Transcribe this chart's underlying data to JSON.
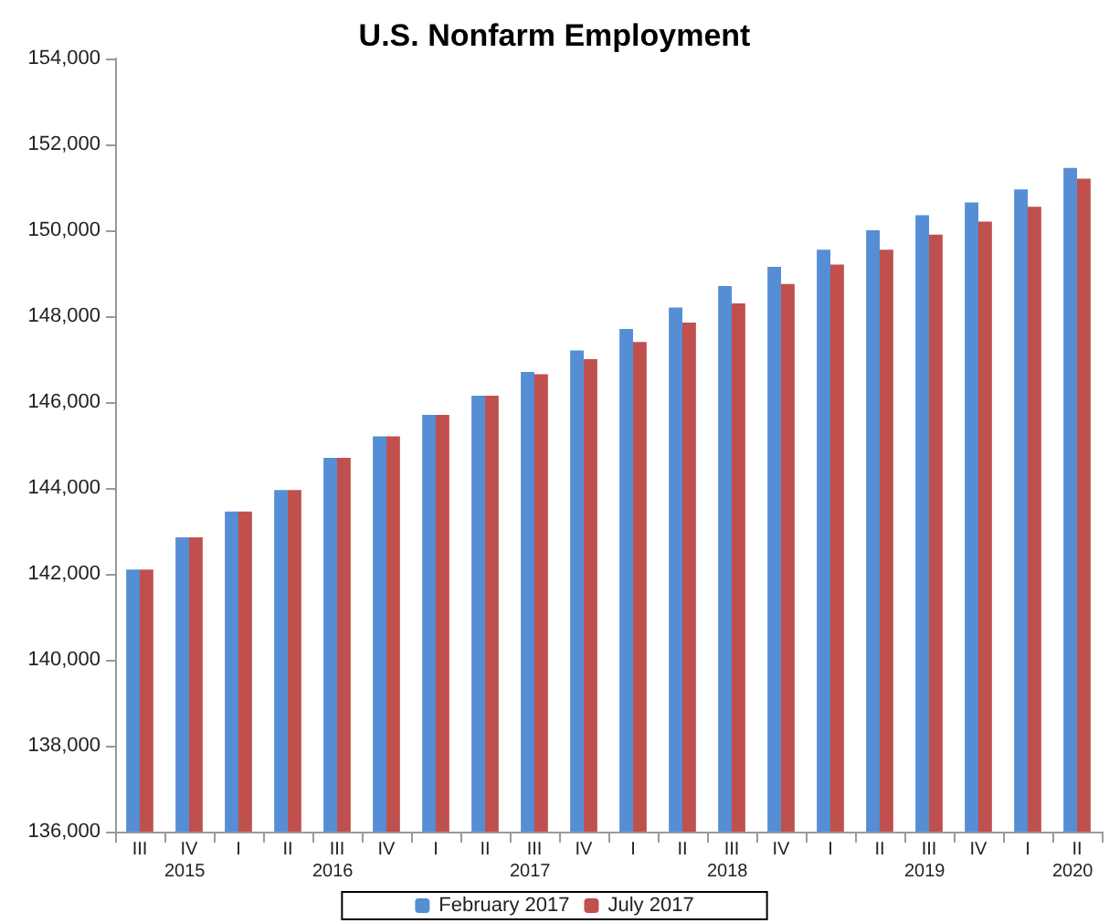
{
  "chart_data": {
    "type": "bar",
    "title": "U.S. Nonfarm Employment",
    "categories": [
      "III",
      "IV",
      "I",
      "II",
      "III",
      "IV",
      "I",
      "II",
      "III",
      "IV",
      "I",
      "II",
      "III",
      "IV",
      "I",
      "II",
      "III",
      "IV",
      "I",
      "II"
    ],
    "series": [
      {
        "name": "February 2017",
        "color": "#558ed5",
        "values": [
          142100,
          142850,
          143450,
          143950,
          144700,
          145200,
          145700,
          146150,
          146700,
          147200,
          147700,
          148200,
          148700,
          149150,
          149550,
          150000,
          150350,
          150650,
          150950,
          151450
        ]
      },
      {
        "name": "July 2017",
        "color": "#c0504d",
        "values": [
          142100,
          142850,
          143450,
          143950,
          144700,
          145200,
          145700,
          146150,
          146650,
          147000,
          147400,
          147850,
          148300,
          148750,
          149200,
          149550,
          149900,
          150200,
          150550,
          151200
        ]
      }
    ],
    "annotations": [
      "2015",
      "2016",
      "2017",
      "2018",
      "2019",
      "2020"
    ],
    "ylim": [
      136000,
      154000
    ],
    "yticks": [
      {
        "value": 136000,
        "label": "136,000"
      },
      {
        "value": 138000,
        "label": "138,000"
      },
      {
        "value": 140000,
        "label": "140,000"
      },
      {
        "value": 142000,
        "label": "142,000"
      },
      {
        "value": 144000,
        "label": "144,000"
      },
      {
        "value": 146000,
        "label": "146,000"
      },
      {
        "value": 148000,
        "label": "148,000"
      },
      {
        "value": 150000,
        "label": "150,000"
      },
      {
        "value": 152000,
        "label": "152,000"
      },
      {
        "value": 154000,
        "label": "154,000"
      }
    ],
    "grid": false,
    "legend": "bottom"
  }
}
